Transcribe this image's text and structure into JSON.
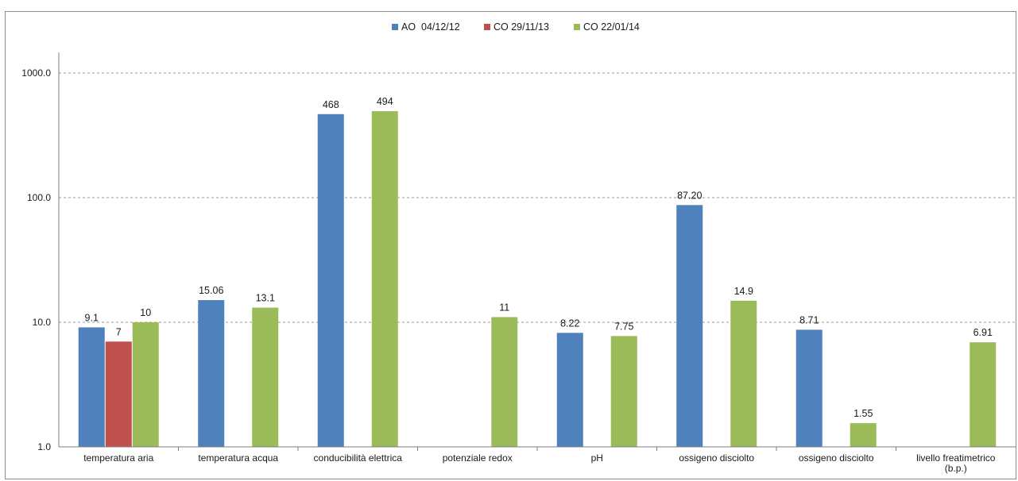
{
  "chart_data": {
    "type": "bar",
    "scale": "log",
    "ylim": [
      1,
      1000
    ],
    "yticks": [
      "1.0",
      "10.0",
      "100.0",
      "1000.0"
    ],
    "grid": true,
    "legend_position": "top",
    "title": "",
    "xlabel": "",
    "ylabel": "",
    "categories": [
      [
        "temperatura aria"
      ],
      [
        "temperatura acqua"
      ],
      [
        "conducibilità elettrica"
      ],
      [
        "potenziale redox"
      ],
      [
        "pH"
      ],
      [
        "ossigeno disciolto"
      ],
      [
        "ossigeno disciolto"
      ],
      [
        "livello freatimetrico",
        "(b.p.)"
      ]
    ],
    "series": [
      {
        "name": "AO  04/12/12",
        "color": "#4f81bd",
        "values": [
          9.1,
          15.06,
          468,
          null,
          8.22,
          87.2,
          8.71,
          null
        ],
        "labels": [
          "9.1",
          "15.06",
          "468",
          "",
          "8.22",
          "87.20",
          "8.71",
          ""
        ]
      },
      {
        "name": "CO 29/11/13",
        "color": "#c0504d",
        "values": [
          7,
          null,
          null,
          null,
          null,
          null,
          null,
          null
        ],
        "labels": [
          "7",
          "",
          "",
          "",
          "",
          "",
          "",
          ""
        ]
      },
      {
        "name": "CO 22/01/14",
        "color": "#9bbb59",
        "values": [
          10,
          13.1,
          494,
          11,
          7.75,
          14.9,
          1.55,
          6.91
        ],
        "labels": [
          "10",
          "13.1",
          "494",
          "11",
          "7.75",
          "14.9",
          "1.55",
          "6.91"
        ]
      }
    ]
  }
}
